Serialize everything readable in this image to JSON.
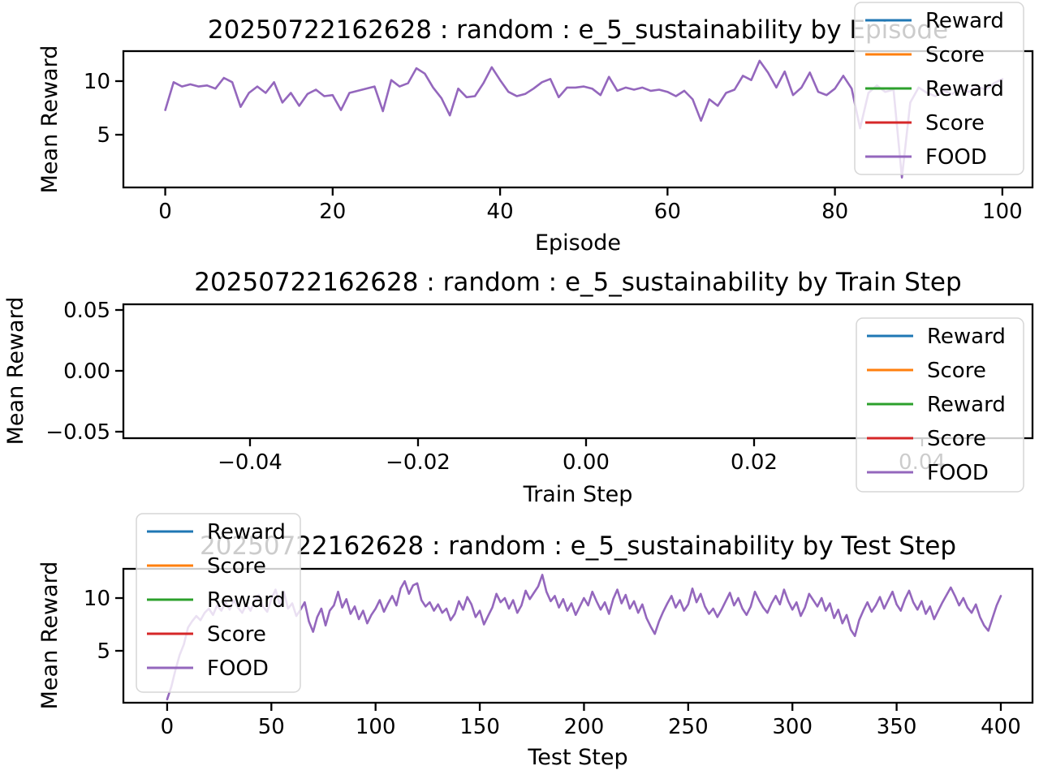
{
  "figure": {
    "background": "#ffffff",
    "text_color": "#000000"
  },
  "legend": {
    "entries": [
      {
        "label": "Reward",
        "color": "#1f77b4"
      },
      {
        "label": "Score",
        "color": "#ff7f0e"
      },
      {
        "label": "Reward",
        "color": "#2ca02c"
      },
      {
        "label": "Score",
        "color": "#d62728"
      },
      {
        "label": "FOOD",
        "color": "#9467bd"
      }
    ],
    "frame_color": "#d6d6d6",
    "background": "rgba(255,255,255,0.8)"
  },
  "chart_data": [
    {
      "type": "line",
      "title": "20250722162628 : random : e_5_sustainability by Episode",
      "xlabel": "Episode",
      "ylabel": "Mean Reward",
      "grid": false,
      "legend_position": "top-right",
      "xlim": [
        -5,
        103.6
      ],
      "ylim": [
        0.08,
        12.8
      ],
      "xticks": [
        0,
        20,
        40,
        60,
        80,
        100
      ],
      "xtick_labels": [
        "0",
        "20",
        "40",
        "60",
        "80",
        "100"
      ],
      "yticks": [
        5,
        10
      ],
      "ytick_labels": [
        "5",
        "10"
      ],
      "series": [
        {
          "name": "FOOD",
          "color": "#9467bd",
          "x": [
            0,
            1,
            2,
            3,
            4,
            5,
            6,
            7,
            8,
            9,
            10,
            11,
            12,
            13,
            14,
            15,
            16,
            17,
            18,
            19,
            20,
            21,
            22,
            23,
            24,
            25,
            26,
            27,
            28,
            29,
            30,
            31,
            32,
            33,
            34,
            35,
            36,
            37,
            38,
            39,
            40,
            41,
            42,
            43,
            44,
            45,
            46,
            47,
            48,
            49,
            50,
            51,
            52,
            53,
            54,
            55,
            56,
            57,
            58,
            59,
            60,
            61,
            62,
            63,
            64,
            65,
            66,
            67,
            68,
            69,
            70,
            71,
            72,
            73,
            74,
            75,
            76,
            77,
            78,
            79,
            80,
            81,
            82,
            83,
            84,
            85,
            86,
            87,
            88,
            89,
            90,
            91,
            92,
            93,
            94,
            95,
            96,
            97,
            98,
            99,
            100
          ],
          "y": [
            7.3,
            9.9,
            9.5,
            9.7,
            9.5,
            9.6,
            9.3,
            10.3,
            9.9,
            7.6,
            8.9,
            9.5,
            8.9,
            9.9,
            8.0,
            8.9,
            7.7,
            8.8,
            9.2,
            8.6,
            8.7,
            7.3,
            8.9,
            9.1,
            9.3,
            9.5,
            7.2,
            10.1,
            9.5,
            9.8,
            11.2,
            10.7,
            9.4,
            8.4,
            6.8,
            9.3,
            8.5,
            8.6,
            9.8,
            11.3,
            10.1,
            9.0,
            8.6,
            8.8,
            9.3,
            9.9,
            10.2,
            8.5,
            9.4,
            9.4,
            9.5,
            9.3,
            8.7,
            10.4,
            9.1,
            9.4,
            9.2,
            9.4,
            9.1,
            9.2,
            9.0,
            8.6,
            9.1,
            8.3,
            6.3,
            8.3,
            7.7,
            8.9,
            9.2,
            10.5,
            10.1,
            11.9,
            10.8,
            9.4,
            10.9,
            8.7,
            9.4,
            10.8,
            9.0,
            8.7,
            9.3,
            10.5,
            9.3,
            5.6,
            8.9,
            9.6,
            9.0,
            9.2,
            1.0,
            8.0,
            9.4,
            8.9,
            8.6,
            9.1,
            8.8,
            9.3,
            9.0,
            9.5,
            9.2,
            9.8,
            10.2
          ]
        }
      ]
    },
    {
      "type": "line",
      "title": "20250722162628 : random : e_5_sustainability by Train Step",
      "xlabel": "Train Step",
      "ylabel": "Mean Reward",
      "grid": false,
      "legend_position": "right",
      "xlim": [
        -0.05507,
        0.05314
      ],
      "ylim": [
        -0.05533,
        0.05467
      ],
      "xticks": [
        -0.04,
        -0.02,
        0.0,
        0.02,
        0.04
      ],
      "xtick_labels": [
        "−0.04",
        "−0.02",
        "0.00",
        "0.02",
        "0.04"
      ],
      "yticks": [
        0.05,
        0.0,
        -0.05
      ],
      "ytick_labels": [
        "0.05",
        "0.00",
        "−0.05"
      ],
      "series": []
    },
    {
      "type": "line",
      "title": "20250722162628 : random : e_5_sustainability by Test Step",
      "xlabel": "Test Step",
      "ylabel": "Mean Reward",
      "grid": false,
      "legend_position": "top-left",
      "xlim": [
        -21,
        415.2
      ],
      "ylim": [
        0.08,
        12.77
      ],
      "xticks": [
        0,
        50,
        100,
        150,
        200,
        250,
        300,
        350,
        400
      ],
      "xtick_labels": [
        "0",
        "50",
        "100",
        "150",
        "200",
        "250",
        "300",
        "350",
        "400"
      ],
      "yticks": [
        5,
        10
      ],
      "ytick_labels": [
        "5",
        "10"
      ],
      "series": [
        {
          "name": "FOOD",
          "color": "#9467bd",
          "x": [
            0,
            2,
            4,
            6,
            8,
            10,
            12,
            14,
            16,
            18,
            20,
            22,
            24,
            26,
            28,
            30,
            32,
            34,
            36,
            38,
            40,
            42,
            44,
            46,
            48,
            50,
            52,
            54,
            56,
            58,
            60,
            62,
            64,
            66,
            68,
            70,
            72,
            74,
            76,
            78,
            80,
            82,
            84,
            86,
            88,
            90,
            92,
            94,
            96,
            98,
            100,
            102,
            104,
            106,
            108,
            110,
            112,
            114,
            116,
            118,
            120,
            122,
            124,
            126,
            128,
            130,
            132,
            134,
            136,
            138,
            140,
            142,
            144,
            146,
            148,
            150,
            152,
            154,
            156,
            158,
            160,
            162,
            164,
            166,
            168,
            170,
            172,
            174,
            176,
            178,
            180,
            182,
            184,
            186,
            188,
            190,
            192,
            194,
            196,
            198,
            200,
            202,
            204,
            206,
            208,
            210,
            212,
            214,
            216,
            218,
            220,
            222,
            224,
            226,
            228,
            230,
            232,
            234,
            236,
            238,
            240,
            242,
            244,
            246,
            248,
            250,
            252,
            254,
            256,
            258,
            260,
            262,
            264,
            266,
            268,
            270,
            272,
            274,
            276,
            278,
            280,
            282,
            284,
            286,
            288,
            290,
            292,
            294,
            296,
            298,
            300,
            302,
            304,
            306,
            308,
            310,
            312,
            314,
            316,
            318,
            320,
            322,
            324,
            326,
            328,
            330,
            332,
            334,
            336,
            338,
            340,
            342,
            344,
            346,
            348,
            350,
            352,
            354,
            356,
            358,
            360,
            362,
            364,
            366,
            368,
            370,
            372,
            374,
            376,
            378,
            380,
            382,
            384,
            386,
            388,
            390,
            392,
            394,
            396,
            398,
            400
          ],
          "y": [
            0.4,
            1.6,
            3.2,
            4.6,
            5.6,
            7.2,
            7.8,
            8.3,
            7.9,
            8.6,
            9.0,
            8.4,
            9.3,
            8.8,
            9.6,
            8.9,
            9.8,
            9.1,
            8.6,
            9.4,
            8.8,
            9.7,
            10.3,
            9.2,
            8.7,
            9.9,
            10.8,
            9.4,
            10.6,
            9.0,
            9.5,
            8.3,
            8.9,
            9.6,
            7.8,
            6.8,
            8.2,
            9.0,
            7.4,
            8.8,
            9.3,
            10.6,
            9.1,
            9.9,
            8.5,
            9.2,
            8.0,
            8.8,
            7.6,
            8.4,
            9.0,
            9.8,
            8.7,
            9.5,
            10.2,
            9.3,
            10.9,
            11.6,
            10.4,
            11.2,
            11.4,
            9.8,
            9.2,
            9.6,
            8.8,
            9.4,
            8.6,
            9.0,
            7.9,
            8.5,
            9.7,
            8.9,
            10.1,
            9.4,
            8.2,
            8.8,
            7.5,
            8.3,
            9.1,
            10.4,
            9.6,
            10.0,
            9.0,
            9.8,
            8.6,
            9.3,
            10.7,
            9.9,
            10.5,
            11.1,
            12.2,
            10.6,
            9.7,
            10.2,
            9.1,
            9.9,
            8.8,
            9.5,
            8.4,
            9.2,
            10.0,
            9.3,
            10.6,
            9.7,
            8.9,
            9.6,
            8.5,
            9.9,
            10.8,
            9.5,
            10.3,
            9.0,
            9.7,
            8.6,
            9.4,
            8.1,
            7.3,
            6.6,
            7.8,
            8.7,
            9.5,
            10.2,
            9.1,
            9.8,
            8.8,
            9.4,
            10.9,
            9.6,
            10.4,
            9.2,
            8.5,
            9.0,
            8.2,
            8.9,
            9.7,
            10.5,
            9.3,
            10.0,
            9.0,
            8.4,
            9.2,
            10.6,
            9.8,
            9.1,
            8.6,
            9.5,
            10.2,
            9.4,
            10.8,
            9.7,
            8.9,
            9.6,
            8.3,
            9.1,
            10.4,
            9.8,
            9.2,
            10.0,
            8.8,
            9.5,
            8.1,
            8.9,
            7.6,
            8.4,
            7.0,
            6.4,
            7.9,
            8.8,
            9.6,
            8.7,
            9.3,
            10.1,
            9.0,
            9.8,
            10.6,
            9.4,
            8.8,
            9.9,
            10.7,
            9.6,
            8.9,
            9.7,
            8.5,
            9.2,
            8.0,
            8.8,
            9.6,
            10.3,
            11.0,
            10.2,
            9.3,
            10.0,
            9.1,
            8.6,
            9.4,
            8.2,
            7.4,
            6.9,
            8.1,
            9.3,
            10.2
          ]
        }
      ]
    }
  ]
}
